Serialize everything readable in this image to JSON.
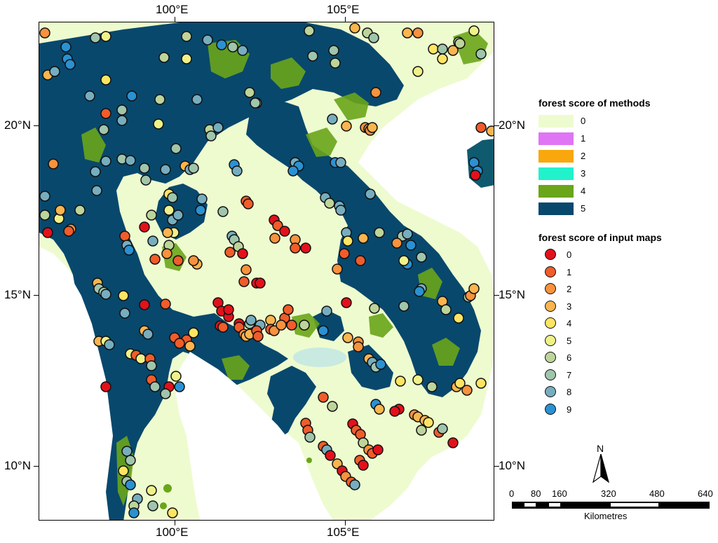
{
  "axes": {
    "top_labels": [
      "100°E",
      "105°E"
    ],
    "bottom_labels": [
      "100°E",
      "105°E"
    ],
    "left_labels": [
      "20°N",
      "15°N",
      "10°N"
    ],
    "right_labels": [
      "20°N",
      "15°N",
      "10°N"
    ]
  },
  "legend_methods": {
    "title": "forest score of methods",
    "items": [
      {
        "label": "0",
        "color": "#eefbcf"
      },
      {
        "label": "1",
        "color": "#df74f4"
      },
      {
        "label": "2",
        "color": "#f9a70c"
      },
      {
        "label": "3",
        "color": "#22f2cc"
      },
      {
        "label": "4",
        "color": "#6aa51a"
      },
      {
        "label": "5",
        "color": "#08486d"
      }
    ]
  },
  "legend_inputs": {
    "title": "forest score of input maps",
    "items": [
      {
        "label": "0",
        "color": "#e3111b"
      },
      {
        "label": "1",
        "color": "#f05c2a"
      },
      {
        "label": "2",
        "color": "#f7923d"
      },
      {
        "label": "3",
        "color": "#fab54e"
      },
      {
        "label": "4",
        "color": "#fde562"
      },
      {
        "label": "5",
        "color": "#eef288"
      },
      {
        "label": "6",
        "color": "#bdd49a"
      },
      {
        "label": "7",
        "color": "#9fc5ac"
      },
      {
        "label": "8",
        "color": "#76aebf"
      },
      {
        "label": "9",
        "color": "#2a91d2"
      }
    ]
  },
  "north_arrow": {
    "label": "N"
  },
  "scale_bar": {
    "ticks": [
      "0",
      "80",
      "160",
      "320",
      "480",
      "640"
    ],
    "unit": "Kilometres"
  },
  "map_colors": {
    "background": "#ffffff",
    "non_forest": "#eefbcf",
    "forest_score_5": "#08486d",
    "forest_score_4": "#6aa51a"
  }
}
